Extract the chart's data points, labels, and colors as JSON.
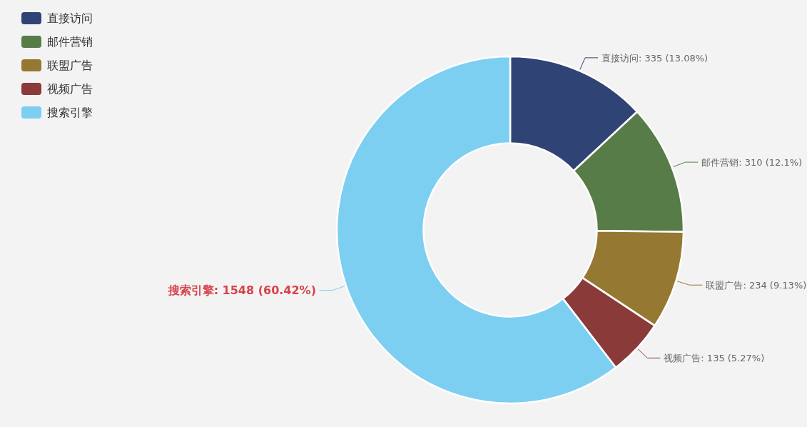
{
  "chart_data": {
    "type": "donut",
    "categories": [
      "直接访问",
      "邮件营销",
      "联盟广告",
      "视频广告",
      "搜索引擎"
    ],
    "values": [
      335,
      310,
      234,
      135,
      1548
    ],
    "colors": [
      "#2f4374",
      "#577c48",
      "#957832",
      "#8b3a3a",
      "#7dcff1"
    ],
    "value_labels": [
      "直接访问: 335 (13.08%)",
      "邮件营销: 310 (12.1%)",
      "联盟广告: 234 (9.13%)",
      "视频广告: 135 (5.27%)",
      "搜索引擎: 1548 (60.42%)"
    ],
    "legend": "top left"
  }
}
